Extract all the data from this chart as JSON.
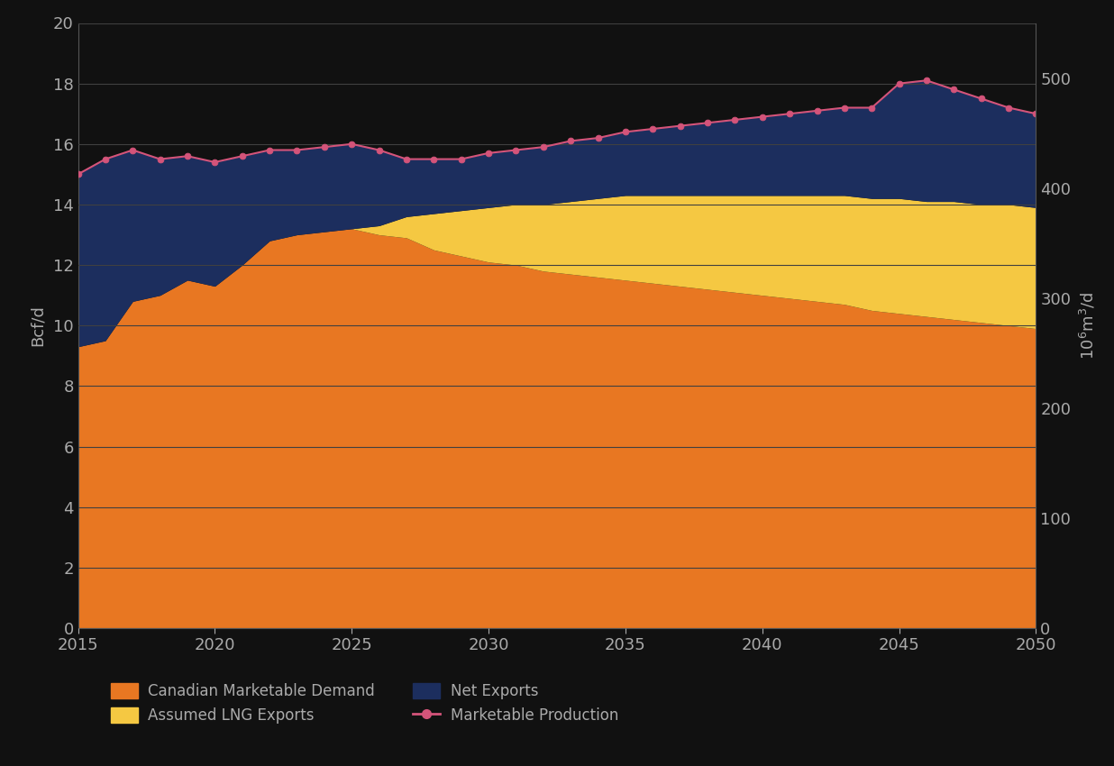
{
  "years": [
    2015,
    2016,
    2017,
    2018,
    2019,
    2020,
    2021,
    2022,
    2023,
    2024,
    2025,
    2026,
    2027,
    2028,
    2029,
    2030,
    2031,
    2032,
    2033,
    2034,
    2035,
    2036,
    2037,
    2038,
    2039,
    2040,
    2041,
    2042,
    2043,
    2044,
    2045,
    2046,
    2047,
    2048,
    2049,
    2050
  ],
  "canadian_demand": [
    9.3,
    9.5,
    10.8,
    11.0,
    11.5,
    11.3,
    12.0,
    12.8,
    13.0,
    13.1,
    13.2,
    13.0,
    12.9,
    12.5,
    12.3,
    12.1,
    12.0,
    11.8,
    11.7,
    11.6,
    11.5,
    11.4,
    11.3,
    11.2,
    11.1,
    11.0,
    10.9,
    10.8,
    10.7,
    10.5,
    10.4,
    10.3,
    10.2,
    10.1,
    10.0,
    9.9
  ],
  "lng_exports": [
    0.0,
    0.0,
    0.0,
    0.0,
    0.0,
    0.0,
    0.0,
    0.0,
    0.0,
    0.0,
    0.0,
    0.3,
    0.7,
    1.2,
    1.5,
    1.8,
    2.0,
    2.2,
    2.4,
    2.6,
    2.8,
    2.9,
    3.0,
    3.1,
    3.2,
    3.3,
    3.4,
    3.5,
    3.6,
    3.7,
    3.8,
    3.8,
    3.9,
    3.9,
    4.0,
    4.0
  ],
  "net_exports": [
    5.7,
    6.0,
    5.0,
    4.5,
    4.1,
    4.1,
    3.6,
    3.0,
    2.8,
    2.8,
    2.8,
    2.5,
    1.9,
    1.8,
    1.7,
    1.8,
    1.8,
    1.9,
    2.0,
    2.0,
    2.1,
    2.2,
    2.3,
    2.4,
    2.5,
    2.6,
    2.7,
    2.8,
    2.9,
    3.0,
    3.8,
    4.0,
    3.7,
    3.5,
    3.2,
    3.1
  ],
  "marketable_production": [
    15.0,
    15.5,
    15.8,
    15.5,
    15.6,
    15.4,
    15.6,
    15.8,
    15.8,
    15.9,
    16.0,
    15.8,
    15.5,
    15.5,
    15.5,
    15.7,
    15.8,
    15.9,
    16.1,
    16.2,
    16.4,
    16.5,
    16.6,
    16.7,
    16.8,
    16.9,
    17.0,
    17.1,
    17.2,
    17.2,
    18.0,
    18.1,
    17.8,
    17.5,
    17.2,
    17.0
  ],
  "color_demand": "#E87722",
  "color_lng": "#F5C842",
  "color_net_exports": "#1C2E5E",
  "color_production_line": "#D4547A",
  "color_production_marker_face": "#D4547A",
  "color_production_marker_edge": "#D4547A",
  "bg_color": "#111111",
  "plot_bg_color": "#111111",
  "grid_color": "#404040",
  "text_color": "#AAAAAA",
  "spine_color": "#555555",
  "ylabel_left": "Bcf/d",
  "ylabel_right": "10$^6$m$^3$/d",
  "ylim_left": [
    0,
    20
  ],
  "ylim_right": [
    0,
    550
  ],
  "yticks_left": [
    0,
    2,
    4,
    6,
    8,
    10,
    12,
    14,
    16,
    18,
    20
  ],
  "yticks_right": [
    0,
    100,
    200,
    300,
    400,
    500
  ],
  "xticks": [
    2015,
    2020,
    2025,
    2030,
    2035,
    2040,
    2045,
    2050
  ],
  "legend_labels": [
    "Canadian Marketable Demand",
    "Assumed LNG Exports",
    "Net Exports",
    "Marketable Production"
  ]
}
